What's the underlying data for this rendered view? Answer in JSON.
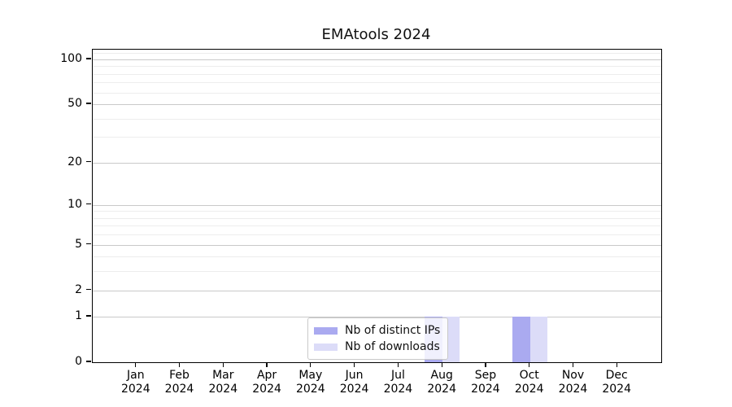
{
  "title": "EMAtools 2024",
  "legend": {
    "items": [
      {
        "label": "Nb of distinct IPs",
        "color": "#aaaaf0"
      },
      {
        "label": "Nb of downloads",
        "color": "#dcdcf8"
      }
    ]
  },
  "chart_data": {
    "type": "bar",
    "title": "EMAtools 2024",
    "categories": [
      "Jan 2024",
      "Feb 2024",
      "Mar 2024",
      "Apr 2024",
      "May 2024",
      "Jun 2024",
      "Jul 2024",
      "Aug 2024",
      "Sep 2024",
      "Oct 2024",
      "Nov 2024",
      "Dec 2024"
    ],
    "series": [
      {
        "name": "Nb of distinct IPs",
        "color": "#aaaaf0",
        "values": [
          0,
          0,
          0,
          0,
          0,
          0,
          0,
          1,
          0,
          1,
          0,
          0
        ]
      },
      {
        "name": "Nb of downloads",
        "color": "#dcdcf8",
        "values": [
          0,
          0,
          0,
          0,
          0,
          0,
          0,
          1,
          0,
          1,
          0,
          0
        ]
      }
    ],
    "xlabel": "",
    "ylabel": "",
    "y_axis": {
      "scale": "log1p",
      "major_ticks": [
        0,
        1,
        2,
        5,
        10,
        20,
        50,
        100
      ],
      "minor_ticks": [
        3,
        4,
        6,
        7,
        8,
        9,
        30,
        40,
        60,
        70,
        80,
        90,
        110
      ],
      "ylim_top": 116
    },
    "grid": "horizontal",
    "grid_color_major": "#c9c9c9",
    "grid_color_minor": "#ededed",
    "axis_color": "#000000",
    "legend_position": "bottom-center-inside"
  }
}
